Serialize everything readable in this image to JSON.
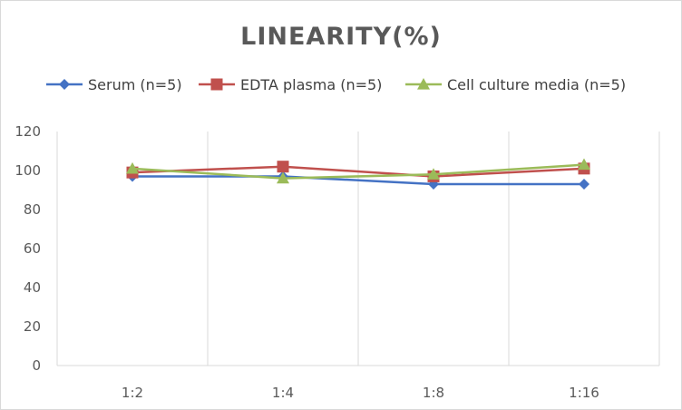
{
  "chart_data": {
    "type": "line",
    "title": "LINEARITY(%)",
    "xlabel": "",
    "ylabel": "",
    "categories": [
      "1:2",
      "1:4",
      "1:8",
      "1:16"
    ],
    "ylim": [
      0,
      120
    ],
    "yticks": [
      0,
      20,
      40,
      60,
      80,
      100,
      120
    ],
    "grid": {
      "x": true,
      "y": false
    },
    "legend_position": "top",
    "series": [
      {
        "name": "Serum (n=5)",
        "values": [
          97,
          97,
          93,
          93
        ],
        "color": "#4472C4",
        "marker": "diamond"
      },
      {
        "name": "EDTA plasma (n=5)",
        "values": [
          99,
          102,
          97,
          101
        ],
        "color": "#C0504D",
        "marker": "square"
      },
      {
        "name": "Cell culture media (n=5)",
        "values": [
          101,
          96,
          98,
          103
        ],
        "color": "#9BBB59",
        "marker": "triangle"
      }
    ]
  }
}
